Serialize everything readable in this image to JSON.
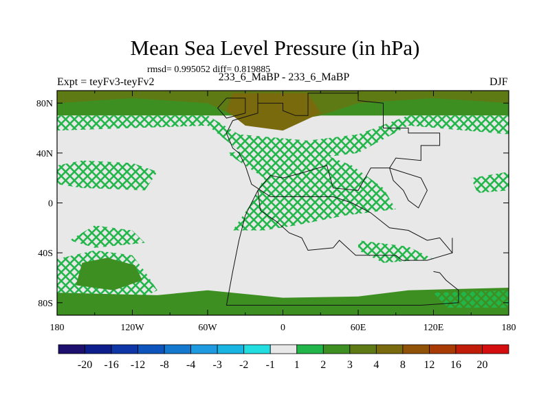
{
  "chart_data": {
    "type": "heatmap",
    "title": "Mean Sea Level Pressure (in hPa)",
    "stats_text": "rmsd= 0.995052 diff= 0.819885",
    "subtitle": "233_6_MaBP - 233_6_MaBP",
    "left_label": "Expt = teyFv3-teyFv2",
    "right_label": "DJF",
    "x_range": [
      -180,
      180
    ],
    "y_range": [
      -90,
      90
    ],
    "x_ticks": [
      {
        "value": -180,
        "label": "180"
      },
      {
        "value": -120,
        "label": "120W"
      },
      {
        "value": -60,
        "label": "60W"
      },
      {
        "value": 0,
        "label": "0"
      },
      {
        "value": 60,
        "label": "60E"
      },
      {
        "value": 120,
        "label": "120E"
      },
      {
        "value": 180,
        "label": "180"
      }
    ],
    "y_ticks": [
      {
        "value": 80,
        "label": "80N"
      },
      {
        "value": 40,
        "label": "40N"
      },
      {
        "value": 0,
        "label": "0"
      },
      {
        "value": -40,
        "label": "40S"
      },
      {
        "value": -80,
        "label": "80S"
      }
    ],
    "colorbar": {
      "colors": [
        "#1c0f6e",
        "#0d1e8c",
        "#0f36a6",
        "#0d55bd",
        "#1478cf",
        "#1e9be0",
        "#18b5e2",
        "#22dee0",
        "#e8e8e8",
        "#22b54a",
        "#3e8f22",
        "#5e7a14",
        "#7a6a0e",
        "#8f5206",
        "#a83a04",
        "#c01c08",
        "#d40e0e"
      ],
      "labels": [
        "-20",
        "-16",
        "-12",
        "-8",
        "-4",
        "-3",
        "-2",
        "-1",
        "1",
        "2",
        "3",
        "4",
        "8",
        "12",
        "16",
        "20"
      ]
    },
    "regions": [
      {
        "level": "2",
        "style": "solid",
        "polygon": [
          [
            -180,
            90
          ],
          [
            180,
            90
          ],
          [
            180,
            70
          ],
          [
            -180,
            70
          ]
        ]
      },
      {
        "level": "2",
        "style": "hatched",
        "polygon": [
          [
            -180,
            70
          ],
          [
            -60,
            70
          ],
          [
            -35,
            55
          ],
          [
            20,
            50
          ],
          [
            60,
            55
          ],
          [
            100,
            70
          ],
          [
            180,
            70
          ],
          [
            180,
            55
          ],
          [
            100,
            62
          ],
          [
            60,
            40
          ],
          [
            20,
            35
          ],
          [
            -35,
            42
          ],
          [
            -60,
            62
          ],
          [
            -180,
            58
          ]
        ]
      },
      {
        "level": "3",
        "style": "solid",
        "polygon": [
          [
            -180,
            90
          ],
          [
            180,
            90
          ],
          [
            180,
            80
          ],
          [
            120,
            84
          ],
          [
            60,
            80
          ],
          [
            30,
            70
          ],
          [
            0,
            65
          ],
          [
            -35,
            68
          ],
          [
            -60,
            80
          ],
          [
            -120,
            84
          ],
          [
            -180,
            80
          ]
        ]
      },
      {
        "level": "4",
        "style": "solid",
        "polygon": [
          [
            -40,
            88
          ],
          [
            20,
            88
          ],
          [
            30,
            72
          ],
          [
            0,
            58
          ],
          [
            -30,
            62
          ],
          [
            -45,
            74
          ]
        ]
      },
      {
        "level": "2",
        "style": "hatched",
        "polygon": [
          [
            -180,
            30
          ],
          [
            -160,
            34
          ],
          [
            -120,
            32
          ],
          [
            -100,
            25
          ],
          [
            -110,
            10
          ],
          [
            -160,
            12
          ],
          [
            -180,
            15
          ]
        ]
      },
      {
        "level": "2",
        "style": "hatched",
        "polygon": [
          [
            -45,
            40
          ],
          [
            0,
            45
          ],
          [
            30,
            40
          ],
          [
            55,
            30
          ],
          [
            80,
            12
          ],
          [
            90,
            -5
          ],
          [
            50,
            -10
          ],
          [
            10,
            -18
          ],
          [
            -15,
            -22
          ],
          [
            -40,
            -22
          ],
          [
            -25,
            0
          ],
          [
            -15,
            20
          ]
        ]
      },
      {
        "level": "2",
        "style": "hatched",
        "polygon": [
          [
            150,
            20
          ],
          [
            180,
            25
          ],
          [
            180,
            10
          ],
          [
            155,
            8
          ]
        ]
      },
      {
        "level": "2",
        "style": "hatched",
        "polygon": [
          [
            -150,
            -18
          ],
          [
            -120,
            -22
          ],
          [
            -110,
            -32
          ],
          [
            -150,
            -36
          ],
          [
            -170,
            -30
          ]
        ]
      },
      {
        "level": "2",
        "style": "hatched",
        "polygon": [
          [
            -180,
            -45
          ],
          [
            -150,
            -38
          ],
          [
            -120,
            -42
          ],
          [
            -110,
            -55
          ],
          [
            -100,
            -70
          ],
          [
            -120,
            -80
          ],
          [
            -180,
            -82
          ]
        ]
      },
      {
        "level": "2",
        "style": "solid",
        "polygon": [
          [
            -160,
            -48
          ],
          [
            -140,
            -44
          ],
          [
            -118,
            -50
          ],
          [
            -112,
            -62
          ],
          [
            -135,
            -70
          ],
          [
            -165,
            -66
          ]
        ]
      },
      {
        "level": "2",
        "style": "hatched",
        "polygon": [
          [
            60,
            -30
          ],
          [
            100,
            -35
          ],
          [
            120,
            -45
          ],
          [
            80,
            -48
          ],
          [
            60,
            -38
          ]
        ]
      },
      {
        "level": "2",
        "style": "solid",
        "polygon": [
          [
            -180,
            -72
          ],
          [
            -100,
            -74
          ],
          [
            -60,
            -70
          ],
          [
            0,
            -76
          ],
          [
            60,
            -75
          ],
          [
            100,
            -70
          ],
          [
            180,
            -68
          ],
          [
            180,
            -90
          ],
          [
            -180,
            -90
          ]
        ]
      },
      {
        "level": "3",
        "style": "hatched",
        "polygon": [
          [
            120,
            -72
          ],
          [
            180,
            -70
          ],
          [
            180,
            -84
          ],
          [
            130,
            -84
          ]
        ]
      }
    ],
    "coastline": [
      [
        [
          -45,
          84
        ],
        [
          -30,
          84
        ],
        [
          -30,
          72
        ],
        [
          -45,
          68
        ],
        [
          -52,
          76
        ],
        [
          -45,
          84
        ]
      ],
      [
        [
          -20,
          88
        ],
        [
          -20,
          80
        ],
        [
          0,
          80
        ],
        [
          0,
          74
        ],
        [
          10,
          70
        ],
        [
          20,
          70
        ],
        [
          20,
          88
        ],
        [
          60,
          88
        ],
        [
          60,
          82
        ],
        [
          80,
          80
        ],
        [
          80,
          60
        ],
        [
          100,
          60
        ],
        [
          100,
          56
        ],
        [
          125,
          56
        ],
        [
          125,
          46
        ],
        [
          110,
          46
        ],
        [
          110,
          34
        ],
        [
          90,
          36
        ],
        [
          85,
          28
        ],
        [
          70,
          28
        ],
        [
          60,
          10
        ],
        [
          40,
          12
        ],
        [
          35,
          30
        ],
        [
          15,
          24
        ],
        [
          0,
          20
        ],
        [
          -10,
          22
        ],
        [
          -20,
          10
        ],
        [
          -18,
          -6
        ],
        [
          -5,
          -15
        ],
        [
          5,
          -24
        ],
        [
          15,
          -28
        ],
        [
          20,
          -38
        ],
        [
          40,
          -36
        ],
        [
          45,
          -30
        ],
        [
          58,
          -42
        ],
        [
          90,
          -42
        ],
        [
          95,
          -46
        ],
        [
          115,
          -46
        ],
        [
          135,
          -40
        ],
        [
          125,
          -28
        ],
        [
          115,
          -30
        ],
        [
          100,
          -22
        ],
        [
          85,
          -20
        ],
        [
          70,
          -8
        ],
        [
          55,
          0
        ],
        [
          40,
          5
        ],
        [
          20,
          5
        ],
        [
          -10,
          5
        ],
        [
          -25,
          15
        ],
        [
          -30,
          30
        ],
        [
          -35,
          40
        ],
        [
          -40,
          44
        ],
        [
          -45,
          56
        ],
        [
          -40,
          66
        ],
        [
          -20,
          72
        ],
        [
          -20,
          88
        ]
      ],
      [
        [
          -20,
          10
        ],
        [
          -30,
          -10
        ],
        [
          -35,
          -30
        ],
        [
          -40,
          -55
        ],
        [
          -45,
          -82
        ],
        [
          -20,
          -82
        ],
        [
          40,
          -82
        ],
        [
          110,
          -82
        ],
        [
          140,
          -80
        ],
        [
          140,
          -70
        ],
        [
          130,
          -62
        ],
        [
          125,
          -56
        ],
        [
          120,
          -55
        ]
      ],
      [
        [
          85,
          28
        ],
        [
          110,
          20
        ],
        [
          115,
          10
        ],
        [
          108,
          -4
        ],
        [
          100,
          2
        ],
        [
          96,
          10
        ],
        [
          88,
          18
        ],
        [
          85,
          28
        ]
      ],
      [
        [
          135,
          -28
        ],
        [
          135,
          -40
        ]
      ]
    ]
  }
}
